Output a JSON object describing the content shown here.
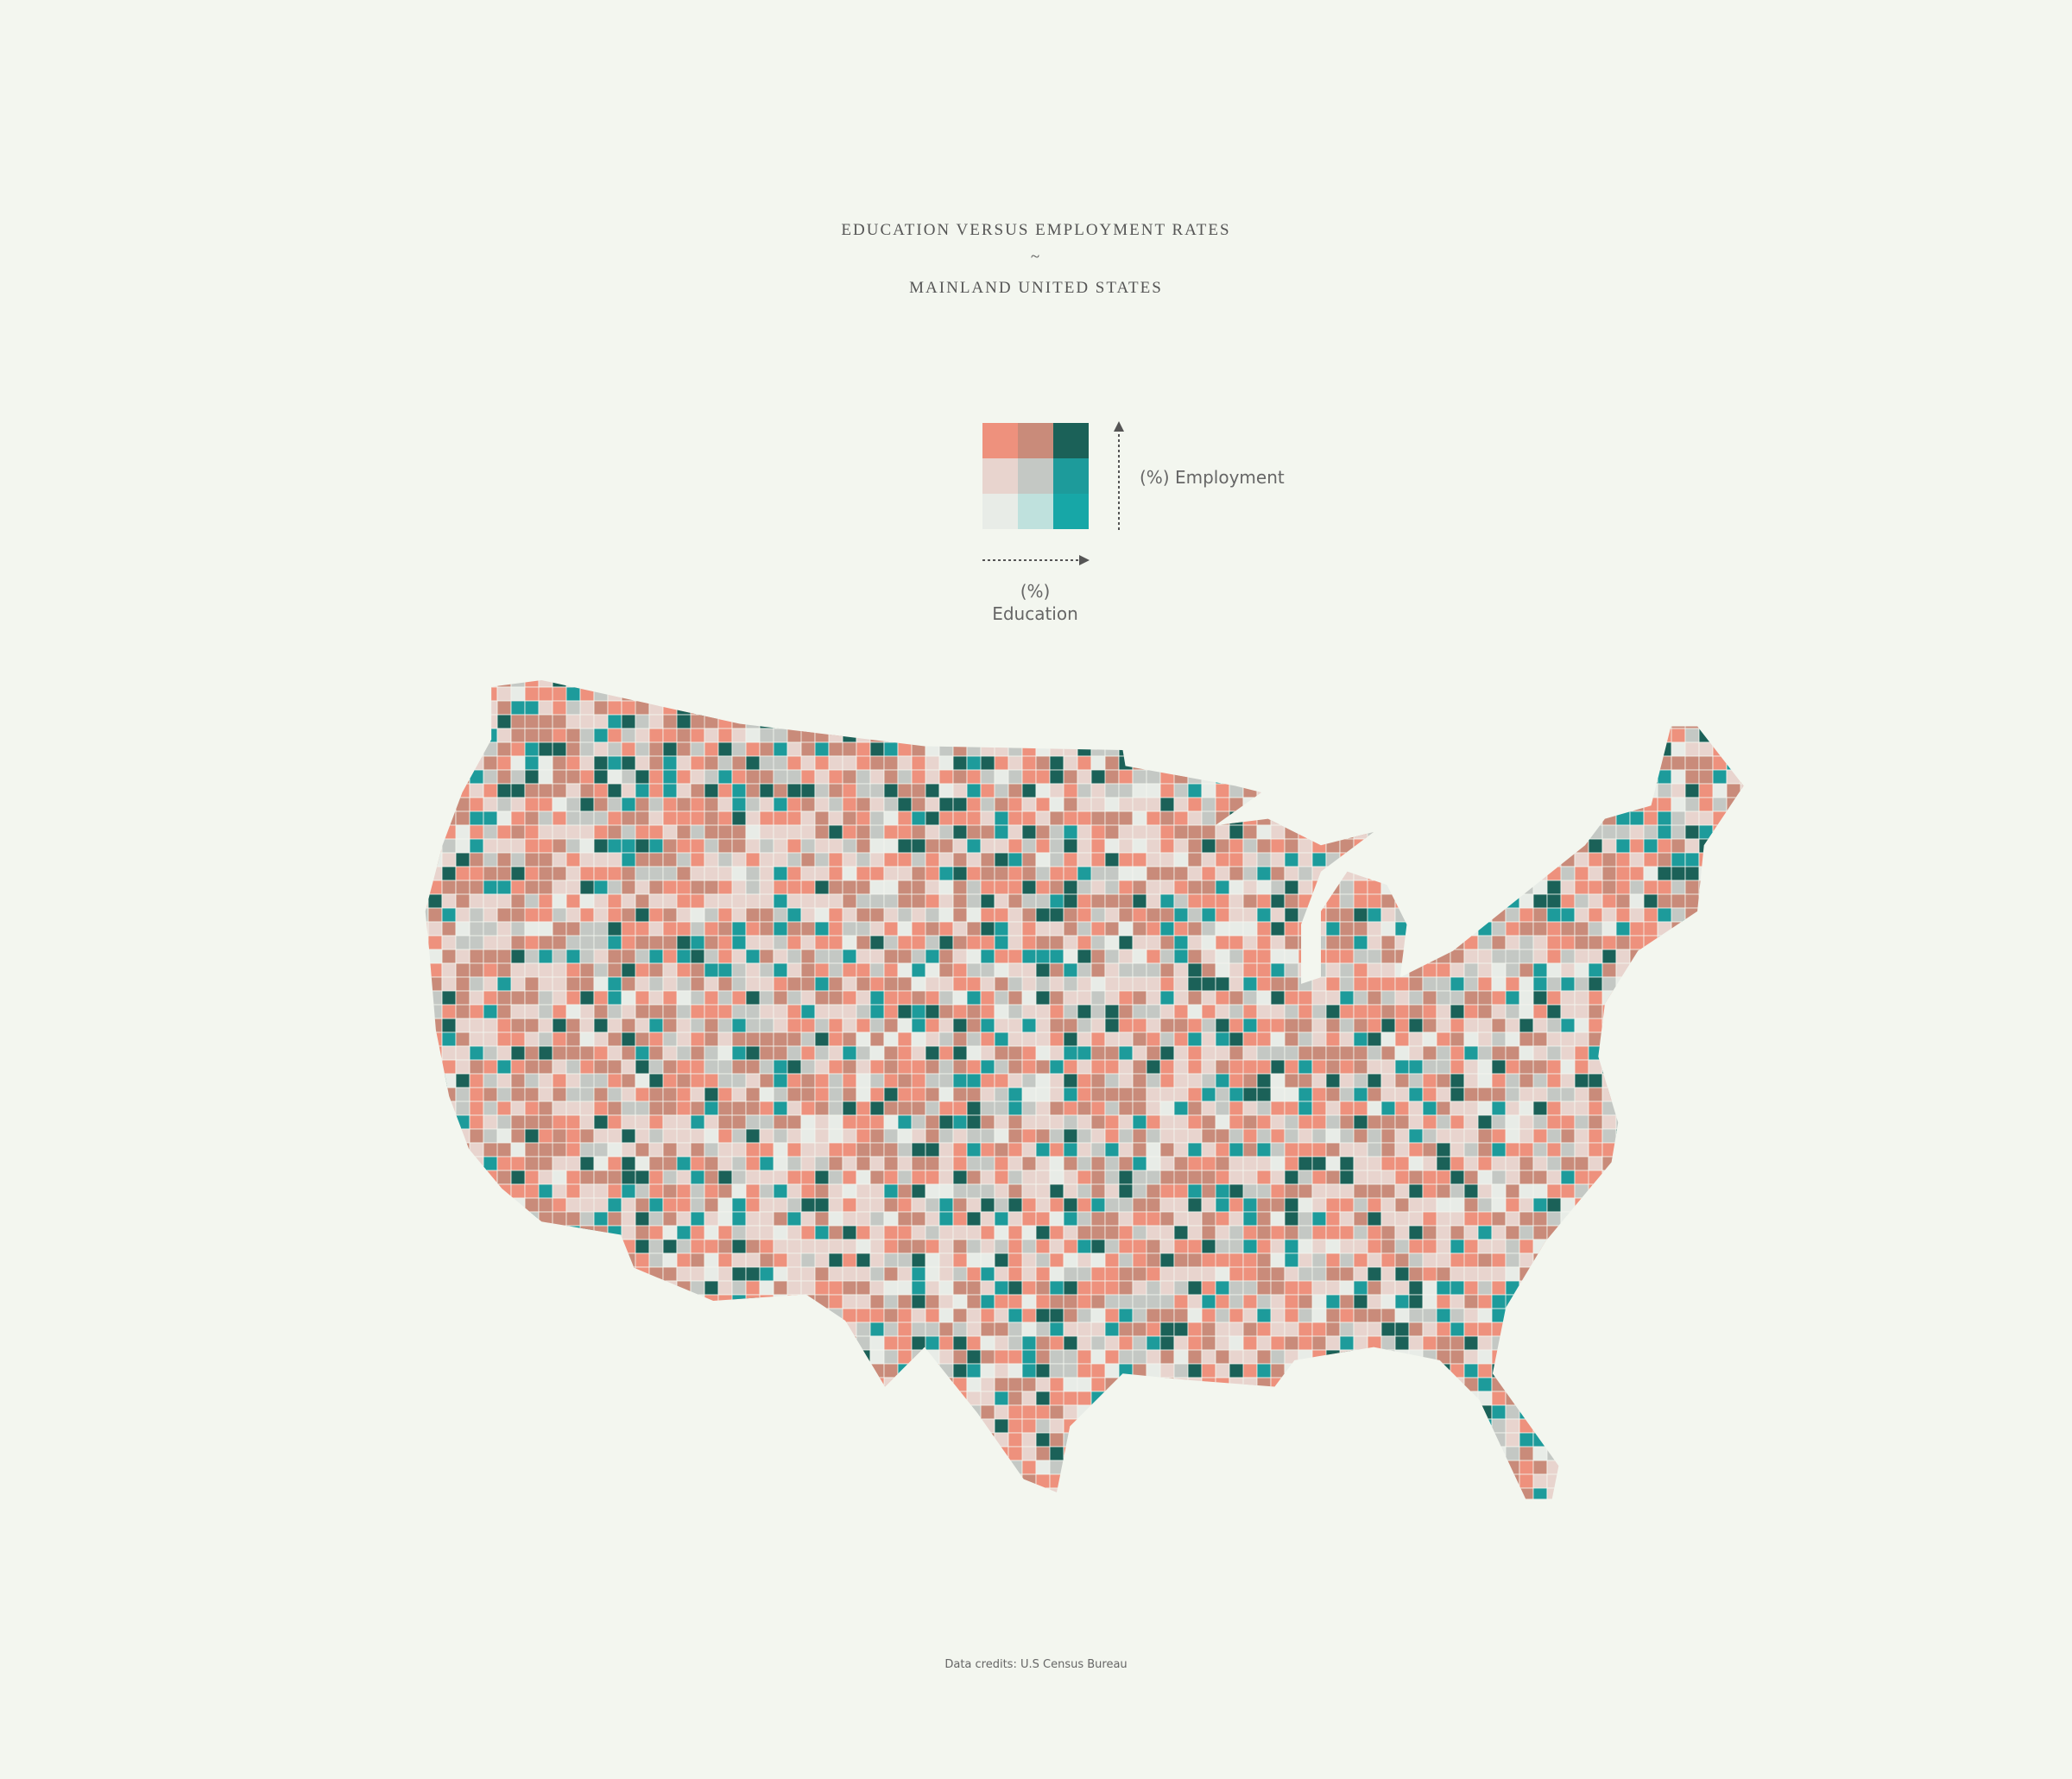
{
  "header": {
    "title": "EDUCATION VERSUS EMPLOYMENT RATES",
    "separator": "~",
    "subtitle": "MAINLAND UNITED STATES"
  },
  "legend": {
    "y_label": "(%) Employment",
    "x_label_unit": "(%)",
    "x_label": "Education",
    "colors": [
      [
        "#ee917d",
        "#c98b7a",
        "#1b6158"
      ],
      [
        "#e8d4ce",
        "#c4c8c4",
        "#1d9b9b"
      ],
      [
        "#e8ece7",
        "#bfe1dd",
        "#17a7a7"
      ]
    ]
  },
  "footer": {
    "credits": "Data credits: U.S Census Bureau"
  }
}
